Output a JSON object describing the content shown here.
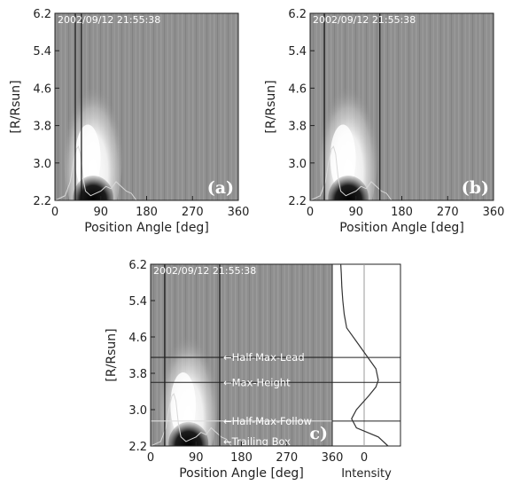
{
  "panels": [
    {
      "id": "a",
      "letter": "(a)",
      "timestamp": "2002/09/12  21:55:38",
      "xlabel": "Position Angle [deg]",
      "ylabel": "[R/Rsun]",
      "xticks": [
        "0",
        "90",
        "180",
        "270",
        "360"
      ],
      "yticks": [
        "2.2",
        "3.0",
        "3.8",
        "4.6",
        "5.4",
        "6.2"
      ],
      "box_lines_deg": [
        40,
        52
      ]
    },
    {
      "id": "b",
      "letter": "(b)",
      "timestamp": "2002/09/12  21:55:38",
      "xlabel": "Position Angle [deg]",
      "ylabel": "[R/Rsun]",
      "xticks": [
        "0",
        "90",
        "180",
        "270",
        "360"
      ],
      "yticks": [
        "2.2",
        "3.0",
        "3.8",
        "4.6",
        "5.4",
        "6.2"
      ],
      "box_lines_deg": [
        28,
        137
      ]
    },
    {
      "id": "c",
      "letter": "c)",
      "timestamp": "2002/09/12  21:55:38",
      "xlabel": "Position Angle [deg]",
      "ylabel": "[R/Rsun]",
      "xticks": [
        "0",
        "90",
        "180",
        "270",
        "360"
      ],
      "yticks": [
        "2.2",
        "3.0",
        "3.8",
        "4.6",
        "5.4",
        "6.2"
      ],
      "box_lines_deg": [
        28,
        137
      ],
      "markers": [
        {
          "label": "Half-Max-Lead",
          "r": 4.15
        },
        {
          "label": "Max-Height",
          "r": 3.6
        },
        {
          "label": "Half-Max-Follow",
          "r": 2.75
        },
        {
          "label": "Trailing Box",
          "r": 2.3
        }
      ]
    }
  ],
  "intensity_panel": {
    "xlabel": "Intensity",
    "xtick": "0"
  },
  "chart_data": [
    {
      "type": "heatmap",
      "title": "2002/09/12  21:55:38",
      "xlabel": "Position Angle [deg]",
      "ylabel": "[R/Rsun]",
      "xlim": [
        0,
        360
      ],
      "ylim": [
        2.2,
        6.2
      ],
      "features": {
        "bright_front_center_deg": 75,
        "bright_front_top_r": 4.9,
        "dark_core_center_deg": 75,
        "dark_core_top_r": 2.7
      },
      "profile_overlay": {
        "x_deg": [
          0,
          20,
          30,
          36,
          42,
          46,
          50,
          55,
          60,
          70,
          80,
          90,
          100,
          110,
          120,
          130,
          140,
          150,
          160,
          360
        ],
        "r": [
          2.2,
          2.3,
          2.6,
          3.0,
          3.3,
          3.35,
          3.2,
          2.7,
          2.4,
          2.3,
          2.35,
          2.4,
          2.5,
          2.45,
          2.6,
          2.5,
          2.4,
          2.35,
          2.2,
          2.2
        ]
      }
    },
    {
      "type": "line",
      "title": "",
      "xlabel": "Intensity",
      "ylabel": "[R/Rsun]",
      "ylim": [
        2.2,
        6.2
      ],
      "intensity": [
        1.0,
        0.8,
        0.35,
        0.25,
        0.35,
        0.6,
        0.75,
        0.8,
        0.75,
        0.55,
        0.35,
        0.15,
        0.1,
        0.07,
        0.05,
        0.04,
        0.03
      ],
      "r": [
        2.2,
        2.4,
        2.6,
        2.8,
        3.0,
        3.3,
        3.5,
        3.65,
        3.9,
        4.2,
        4.5,
        4.8,
        5.1,
        5.4,
        5.7,
        6.0,
        6.2
      ]
    }
  ]
}
